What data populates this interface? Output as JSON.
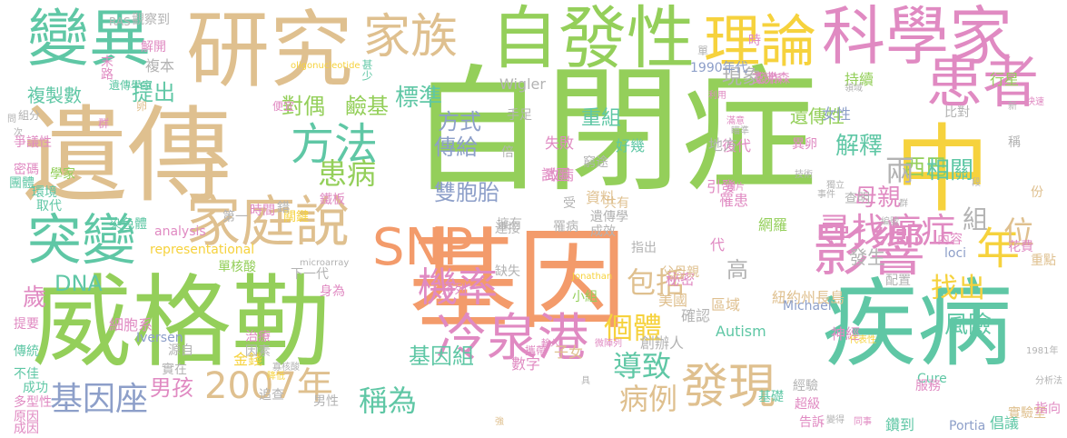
{
  "palette": {
    "green": "#94cf5a",
    "tan": "#dfc08f",
    "orange": "#f39b6b",
    "teal": "#5fc7a5",
    "pink": "#e08ac2",
    "yellow": "#f6d23d",
    "blue": "#8d9fc9",
    "grey": "#b3b3b3"
  },
  "words": [
    {
      "text": "自閉症",
      "color": "green"
    },
    {
      "text": "遺傳",
      "color": "tan"
    },
    {
      "text": "基因",
      "color": "orange"
    },
    {
      "text": "威格勒",
      "color": "green"
    },
    {
      "text": "研究",
      "color": "tan"
    },
    {
      "text": "疾病",
      "color": "teal"
    },
    {
      "text": "中",
      "color": "yellow"
    },
    {
      "text": "自發性",
      "color": "green"
    },
    {
      "text": "科學家",
      "color": "pink"
    },
    {
      "text": "變異",
      "color": "teal"
    },
    {
      "text": "理論",
      "color": "yellow"
    },
    {
      "text": "患者",
      "color": "pink"
    },
    {
      "text": "影響",
      "color": "pink"
    },
    {
      "text": "冷泉港",
      "color": "pink"
    },
    {
      "text": "SNP",
      "color": "orange"
    },
    {
      "text": "家庭說",
      "color": "tan"
    },
    {
      "text": "突變",
      "color": "teal"
    },
    {
      "text": "家族",
      "color": "tan"
    },
    {
      "text": "發現",
      "color": "tan"
    },
    {
      "text": "方法",
      "color": "teal"
    },
    {
      "text": "年",
      "color": "yellow"
    },
    {
      "text": "機率",
      "color": "pink"
    },
    {
      "text": "2007年",
      "color": "tan"
    },
    {
      "text": "基因座",
      "color": "blue"
    },
    {
      "text": "尋找癌症",
      "color": "pink"
    },
    {
      "text": "患病",
      "color": "green"
    },
    {
      "text": "包括",
      "color": "tan"
    },
    {
      "text": "個體",
      "color": "yellow"
    },
    {
      "text": "稱為",
      "color": "teal"
    },
    {
      "text": "導致",
      "color": "teal"
    },
    {
      "text": "病例",
      "color": "tan"
    },
    {
      "text": "標準",
      "color": "teal"
    },
    {
      "text": "提出",
      "color": "teal"
    },
    {
      "text": "對偶",
      "color": "green"
    },
    {
      "text": "鹼基",
      "color": "green"
    },
    {
      "text": "方式",
      "color": "blue"
    },
    {
      "text": "傳給",
      "color": "blue"
    },
    {
      "text": "雙胞胎",
      "color": "blue"
    },
    {
      "text": "現象",
      "color": "grey"
    },
    {
      "text": "重組",
      "color": "teal"
    },
    {
      "text": "遺傳性",
      "color": "green"
    },
    {
      "text": "解釋",
      "color": "teal"
    },
    {
      "text": "西巴",
      "color": "green"
    },
    {
      "text": "相關",
      "color": "teal"
    },
    {
      "text": "母親",
      "color": "pink"
    },
    {
      "text": "兩",
      "color": "grey"
    },
    {
      "text": "找出",
      "color": "yellow"
    },
    {
      "text": "位",
      "color": "tan"
    },
    {
      "text": "風險",
      "color": "teal"
    },
    {
      "text": "基因組",
      "color": "teal"
    },
    {
      "text": "DNA",
      "color": "teal"
    },
    {
      "text": "歲",
      "color": "pink"
    },
    {
      "text": "男孩",
      "color": "pink"
    },
    {
      "text": "複製數",
      "color": "teal"
    },
    {
      "text": "高",
      "color": "grey"
    },
    {
      "text": "發生",
      "color": "grey"
    },
    {
      "text": "組",
      "color": "grey"
    },
    {
      "text": "持續",
      "color": "green"
    },
    {
      "text": "行星",
      "color": "green"
    },
    {
      "text": "複本",
      "color": "grey"
    },
    {
      "text": "觀察到",
      "color": "grey"
    },
    {
      "text": "解開",
      "color": "pink"
    },
    {
      "text": "末路",
      "color": "pink"
    },
    {
      "text": "爭議性",
      "color": "pink"
    },
    {
      "text": "密碼",
      "color": "pink"
    },
    {
      "text": "團體",
      "color": "teal"
    },
    {
      "text": "學家",
      "color": "green"
    },
    {
      "text": "環境",
      "color": "teal"
    },
    {
      "text": "取代",
      "color": "teal"
    },
    {
      "text": "染色體",
      "color": "teal"
    },
    {
      "text": "時間",
      "color": "pink"
    },
    {
      "text": "關鍵",
      "color": "yellow"
    },
    {
      "text": "鐵板",
      "color": "pink"
    },
    {
      "text": "錯",
      "color": "grey"
    },
    {
      "text": "第一",
      "color": "grey"
    },
    {
      "text": "單核酸",
      "color": "green"
    },
    {
      "text": "下一代",
      "color": "grey"
    },
    {
      "text": "身為",
      "color": "pink"
    },
    {
      "text": "排列",
      "color": "pink"
    },
    {
      "text": "小組",
      "color": "green"
    },
    {
      "text": "缺失",
      "color": "grey"
    },
    {
      "text": "Wigler",
      "color": "grey"
    },
    {
      "text": "手足",
      "color": "grey"
    },
    {
      "text": "倍",
      "color": "grey"
    },
    {
      "text": "失敗",
      "color": "pink"
    },
    {
      "text": "致病",
      "color": "pink"
    },
    {
      "text": "試圖",
      "color": "pink"
    },
    {
      "text": "資料",
      "color": "tan"
    },
    {
      "text": "受",
      "color": "grey"
    },
    {
      "text": "共有",
      "color": "tan"
    },
    {
      "text": "連接",
      "color": "grey"
    },
    {
      "text": "擁有",
      "color": "grey"
    },
    {
      "text": "罹病",
      "color": "grey"
    },
    {
      "text": "遺傳學",
      "color": "grey"
    },
    {
      "text": "成效",
      "color": "grey"
    },
    {
      "text": "指出",
      "color": "grey"
    },
    {
      "text": "秘密",
      "color": "pink"
    },
    {
      "text": "父母親",
      "color": "tan"
    },
    {
      "text": "美國",
      "color": "tan"
    },
    {
      "text": "確認",
      "color": "grey"
    },
    {
      "text": "區域",
      "color": "tan"
    },
    {
      "text": "紐約州長島",
      "color": "tan"
    },
    {
      "text": "Michael",
      "color": "blue"
    },
    {
      "text": "Autism",
      "color": "teal"
    },
    {
      "text": "神經",
      "color": "pink"
    },
    {
      "text": "創辦人",
      "color": "grey"
    },
    {
      "text": "子女",
      "color": "tan"
    },
    {
      "text": "數字",
      "color": "pink"
    },
    {
      "text": "金錢",
      "color": "yellow"
    },
    {
      "text": "男性",
      "color": "grey"
    },
    {
      "text": "源自",
      "color": "grey"
    },
    {
      "text": "追查",
      "color": "grey"
    },
    {
      "text": "實在",
      "color": "grey"
    },
    {
      "text": "因素",
      "color": "grey"
    },
    {
      "text": "治療",
      "color": "pink"
    },
    {
      "text": "細胞系",
      "color": "pink"
    },
    {
      "text": "傳統",
      "color": "teal"
    },
    {
      "text": "不佳",
      "color": "teal"
    },
    {
      "text": "成功",
      "color": "teal"
    },
    {
      "text": "多型性",
      "color": "pink"
    },
    {
      "text": "原因",
      "color": "pink"
    },
    {
      "text": "成因",
      "color": "pink"
    },
    {
      "text": "提要",
      "color": "pink"
    },
    {
      "text": "Iversen",
      "color": "blue"
    },
    {
      "text": "Portia",
      "color": "blue"
    },
    {
      "text": "倡議",
      "color": "teal"
    },
    {
      "text": "實驗室",
      "color": "tan"
    },
    {
      "text": "鑽到",
      "color": "teal"
    },
    {
      "text": "告訴",
      "color": "pink"
    },
    {
      "text": "超級",
      "color": "pink"
    },
    {
      "text": "經驗",
      "color": "grey"
    },
    {
      "text": "基礎",
      "color": "teal"
    },
    {
      "text": "Cure",
      "color": "teal"
    },
    {
      "text": "服務",
      "color": "pink"
    },
    {
      "text": "指向",
      "color": "pink"
    },
    {
      "text": "網羅",
      "color": "green"
    },
    {
      "text": "代",
      "color": "pink"
    },
    {
      "text": "引發",
      "color": "pink"
    },
    {
      "text": "罹患",
      "color": "pink"
    },
    {
      "text": "後代",
      "color": "pink"
    },
    {
      "text": "地方",
      "color": "grey"
    },
    {
      "text": "好幾",
      "color": "teal"
    },
    {
      "text": "異卵",
      "color": "pink"
    },
    {
      "text": "女性",
      "color": "blue"
    },
    {
      "text": "查明",
      "color": "grey"
    },
    {
      "text": "配置",
      "color": "grey"
    },
    {
      "text": "內容",
      "color": "pink"
    },
    {
      "text": "花費",
      "color": "pink"
    },
    {
      "text": "loci",
      "color": "blue"
    },
    {
      "text": "艾弗森",
      "color": "pink"
    },
    {
      "text": "發作",
      "color": "pink"
    },
    {
      "text": "時",
      "color": "pink"
    },
    {
      "text": "比對",
      "color": "grey"
    },
    {
      "text": "稱",
      "color": "grey"
    },
    {
      "text": "份",
      "color": "tan"
    },
    {
      "text": "重點",
      "color": "tan"
    },
    {
      "text": "1990年代",
      "color": "blue"
    },
    {
      "text": "窮途",
      "color": "grey"
    },
    {
      "text": "RAS",
      "color": "grey"
    },
    {
      "text": "甚少",
      "color": "teal"
    },
    {
      "text": "便宜",
      "color": "pink"
    },
    {
      "text": "遺傳學家",
      "color": "teal"
    },
    {
      "text": "卵",
      "color": "tan"
    },
    {
      "text": "組分",
      "color": "grey"
    },
    {
      "text": "群",
      "color": "pink"
    },
    {
      "text": "問",
      "color": "grey"
    },
    {
      "text": "analysis",
      "color": "pink"
    },
    {
      "text": "representational",
      "color": "yellow"
    },
    {
      "text": "oligonucleotide",
      "color": "yellow"
    },
    {
      "text": "microarray",
      "color": "grey"
    },
    {
      "text": "Jonathan",
      "color": "yellow"
    },
    {
      "text": "1981年",
      "color": "grey"
    },
    {
      "text": "分析法",
      "color": "grey"
    },
    {
      "text": "同事",
      "color": "pink"
    },
    {
      "text": "變得",
      "color": "grey"
    },
    {
      "text": "強",
      "color": "tan"
    },
    {
      "text": "具",
      "color": "grey"
    },
    {
      "text": "單",
      "color": "grey"
    },
    {
      "text": "利用",
      "color": "pink"
    },
    {
      "text": "新",
      "color": "grey"
    },
    {
      "text": "快速",
      "color": "pink"
    },
    {
      "text": "滿意",
      "color": "pink"
    },
    {
      "text": "領域",
      "color": "grey"
    },
    {
      "text": "代表性",
      "color": "yellow"
    },
    {
      "text": "微陣列",
      "color": "pink"
    },
    {
      "text": "攜帶",
      "color": "pink"
    },
    {
      "text": "寡核酸",
      "color": "grey"
    },
    {
      "text": "降低",
      "color": "yellow"
    },
    {
      "text": "輸入",
      "color": "pink"
    },
    {
      "text": "圖片",
      "color": "pink"
    },
    {
      "text": "技術",
      "color": "grey"
    },
    {
      "text": "次",
      "color": "grey"
    },
    {
      "text": "段",
      "color": "grey"
    },
    {
      "text": "瞄準",
      "color": "grey"
    },
    {
      "text": "群",
      "color": "grey"
    },
    {
      "text": "編號",
      "color": "grey"
    },
    {
      "text": "獨立",
      "color": "grey"
    },
    {
      "text": "事件",
      "color": "grey"
    }
  ]
}
